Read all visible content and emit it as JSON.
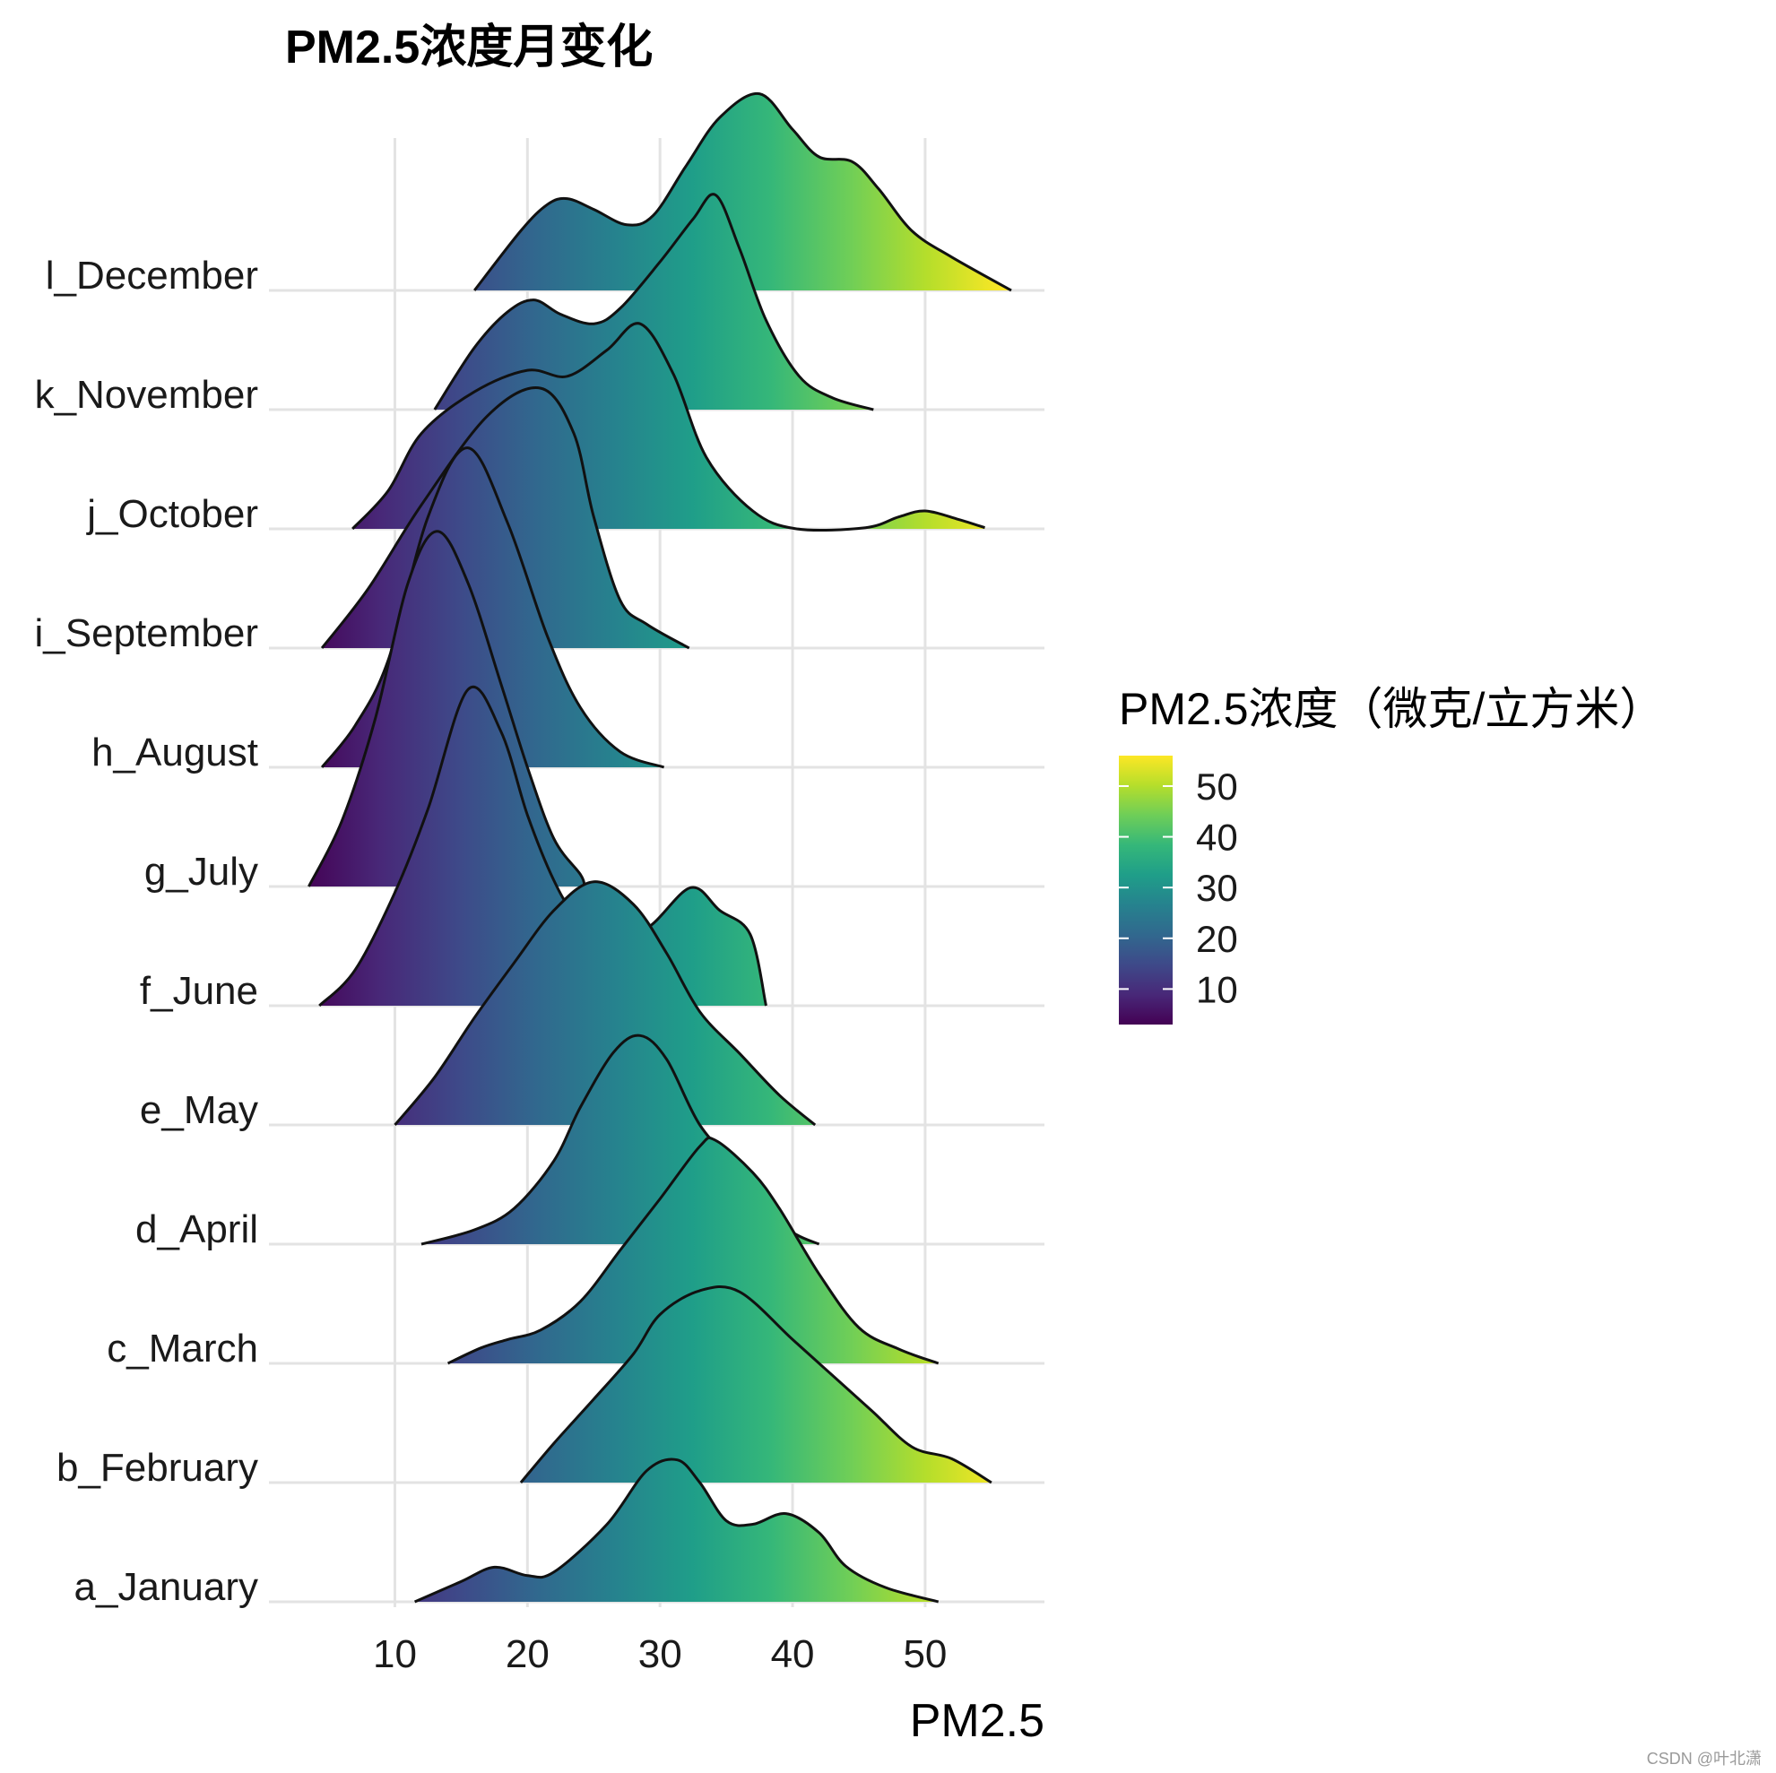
{
  "chart_data": {
    "type": "ridgeline",
    "title": "PM2.5浓度月变化",
    "xlabel": "PM2.5",
    "ylabel": "",
    "xlim": [
      0.5,
      59
    ],
    "x_ticks": [
      10,
      20,
      30,
      40,
      50
    ],
    "grid": true,
    "legend": {
      "title": "PM2.5浓度（微克/立方米）",
      "position": "right",
      "ticks": [
        10,
        20,
        30,
        40,
        50
      ],
      "range": [
        3,
        56
      ],
      "colormap": "viridis"
    },
    "categories": [
      "a_January",
      "b_February",
      "c_March",
      "d_April",
      "e_May",
      "f_June",
      "g_July",
      "h_August",
      "i_September",
      "j_October",
      "k_November",
      "l_December"
    ],
    "series": [
      {
        "name": "a_January",
        "points": [
          [
            11.5,
            0
          ],
          [
            15,
            0.17
          ],
          [
            17.5,
            0.29
          ],
          [
            20,
            0.22
          ],
          [
            22,
            0.25
          ],
          [
            26,
            0.65
          ],
          [
            29,
            1.1
          ],
          [
            31.3,
            1.19
          ],
          [
            33,
            1.0
          ],
          [
            35,
            0.68
          ],
          [
            37,
            0.65
          ],
          [
            39.5,
            0.74
          ],
          [
            42,
            0.58
          ],
          [
            44,
            0.3
          ],
          [
            47,
            0.12
          ],
          [
            51,
            0
          ]
        ]
      },
      {
        "name": "b_February",
        "points": [
          [
            19.5,
            0
          ],
          [
            22,
            0.33
          ],
          [
            25,
            0.7
          ],
          [
            28,
            1.08
          ],
          [
            30,
            1.41
          ],
          [
            33,
            1.61
          ],
          [
            36,
            1.6
          ],
          [
            40,
            1.2
          ],
          [
            43,
            0.9
          ],
          [
            46,
            0.6
          ],
          [
            49,
            0.3
          ],
          [
            52,
            0.2
          ],
          [
            55,
            0
          ]
        ]
      },
      {
        "name": "c_March",
        "points": [
          [
            14,
            0
          ],
          [
            16.5,
            0.13
          ],
          [
            18.5,
            0.2
          ],
          [
            21,
            0.28
          ],
          [
            24,
            0.52
          ],
          [
            27,
            0.95
          ],
          [
            30,
            1.38
          ],
          [
            33,
            1.82
          ],
          [
            34.2,
            1.87
          ],
          [
            37,
            1.6
          ],
          [
            39,
            1.3
          ],
          [
            42,
            0.75
          ],
          [
            45,
            0.3
          ],
          [
            48,
            0.12
          ],
          [
            51,
            0
          ]
        ]
      },
      {
        "name": "d_April",
        "points": [
          [
            12,
            0
          ],
          [
            16,
            0.12
          ],
          [
            19,
            0.3
          ],
          [
            22,
            0.7
          ],
          [
            24,
            1.15
          ],
          [
            26.5,
            1.61
          ],
          [
            28.5,
            1.75
          ],
          [
            30.5,
            1.55
          ],
          [
            33,
            1.0
          ],
          [
            36,
            0.62
          ],
          [
            38,
            0.32
          ],
          [
            40,
            0.1
          ],
          [
            42,
            0
          ]
        ]
      },
      {
        "name": "e_May",
        "points": [
          [
            10,
            0
          ],
          [
            13,
            0.4
          ],
          [
            16,
            0.9
          ],
          [
            19,
            1.36
          ],
          [
            22,
            1.8
          ],
          [
            25,
            2.04
          ],
          [
            28,
            1.85
          ],
          [
            30.5,
            1.44
          ],
          [
            33,
            0.95
          ],
          [
            36,
            0.6
          ],
          [
            39,
            0.25
          ],
          [
            41.7,
            0
          ]
        ]
      },
      {
        "name": "f_June",
        "points": [
          [
            4.3,
            0
          ],
          [
            7,
            0.3
          ],
          [
            10,
            0.95
          ],
          [
            12.5,
            1.65
          ],
          [
            15.5,
            2.65
          ],
          [
            18,
            2.3
          ],
          [
            20,
            1.6
          ],
          [
            22,
            1.05
          ],
          [
            23.5,
            0.79
          ],
          [
            26,
            0.62
          ],
          [
            29,
            0.65
          ],
          [
            32.3,
            0.99
          ],
          [
            34.5,
            0.8
          ],
          [
            36.8,
            0.6
          ],
          [
            38,
            0
          ]
        ]
      },
      {
        "name": "g_July",
        "points": [
          [
            3.5,
            0
          ],
          [
            6,
            0.55
          ],
          [
            8.5,
            1.4
          ],
          [
            11,
            2.55
          ],
          [
            13.2,
            2.98
          ],
          [
            15.5,
            2.55
          ],
          [
            18,
            1.7
          ],
          [
            20,
            1.0
          ],
          [
            22,
            0.4
          ],
          [
            24,
            0.1
          ],
          [
            24.3,
            0
          ]
        ]
      },
      {
        "name": "h_August",
        "points": [
          [
            4.5,
            0
          ],
          [
            7,
            0.35
          ],
          [
            9.5,
            0.9
          ],
          [
            12.5,
            2.1
          ],
          [
            15.5,
            2.68
          ],
          [
            18.5,
            2.05
          ],
          [
            21.5,
            1.1
          ],
          [
            24,
            0.5
          ],
          [
            27,
            0.13
          ],
          [
            30.3,
            0
          ]
        ]
      },
      {
        "name": "i_September",
        "points": [
          [
            4.5,
            0
          ],
          [
            8,
            0.5
          ],
          [
            12,
            1.2
          ],
          [
            17,
            1.95
          ],
          [
            21,
            2.18
          ],
          [
            23.5,
            1.8
          ],
          [
            25,
            1.1
          ],
          [
            27,
            0.4
          ],
          [
            29,
            0.2
          ],
          [
            32.2,
            0
          ]
        ]
      },
      {
        "name": "j_October",
        "points": [
          [
            6.8,
            0
          ],
          [
            9.5,
            0.32
          ],
          [
            12,
            0.8
          ],
          [
            16,
            1.15
          ],
          [
            20,
            1.33
          ],
          [
            23,
            1.28
          ],
          [
            26,
            1.5
          ],
          [
            28.5,
            1.72
          ],
          [
            31,
            1.3
          ],
          [
            33.5,
            0.6
          ],
          [
            37,
            0.15
          ],
          [
            40.3,
            0
          ],
          [
            45.5,
            0.01
          ],
          [
            48,
            0.1
          ],
          [
            50,
            0.15
          ],
          [
            52.5,
            0.08
          ],
          [
            54.5,
            0.01
          ]
        ]
      },
      {
        "name": "k_November",
        "points": [
          [
            13,
            0
          ],
          [
            16,
            0.52
          ],
          [
            18.5,
            0.82
          ],
          [
            20.5,
            0.92
          ],
          [
            22.5,
            0.8
          ],
          [
            25,
            0.72
          ],
          [
            27,
            0.85
          ],
          [
            30,
            1.24
          ],
          [
            32.5,
            1.6
          ],
          [
            34.2,
            1.8
          ],
          [
            36,
            1.35
          ],
          [
            38,
            0.75
          ],
          [
            40.5,
            0.28
          ],
          [
            43,
            0.1
          ],
          [
            46.1,
            0
          ]
        ]
      },
      {
        "name": "l_December",
        "points": [
          [
            16,
            0
          ],
          [
            19.5,
            0.5
          ],
          [
            21.5,
            0.72
          ],
          [
            23,
            0.77
          ],
          [
            25,
            0.68
          ],
          [
            27.5,
            0.55
          ],
          [
            29.5,
            0.63
          ],
          [
            32,
            1.05
          ],
          [
            34.5,
            1.45
          ],
          [
            37.5,
            1.65
          ],
          [
            40,
            1.35
          ],
          [
            42,
            1.12
          ],
          [
            44.5,
            1.08
          ],
          [
            46.5,
            0.85
          ],
          [
            49,
            0.5
          ],
          [
            52,
            0.28
          ],
          [
            56.5,
            0
          ]
        ]
      }
    ]
  },
  "watermark": "CSDN @叶北潇"
}
